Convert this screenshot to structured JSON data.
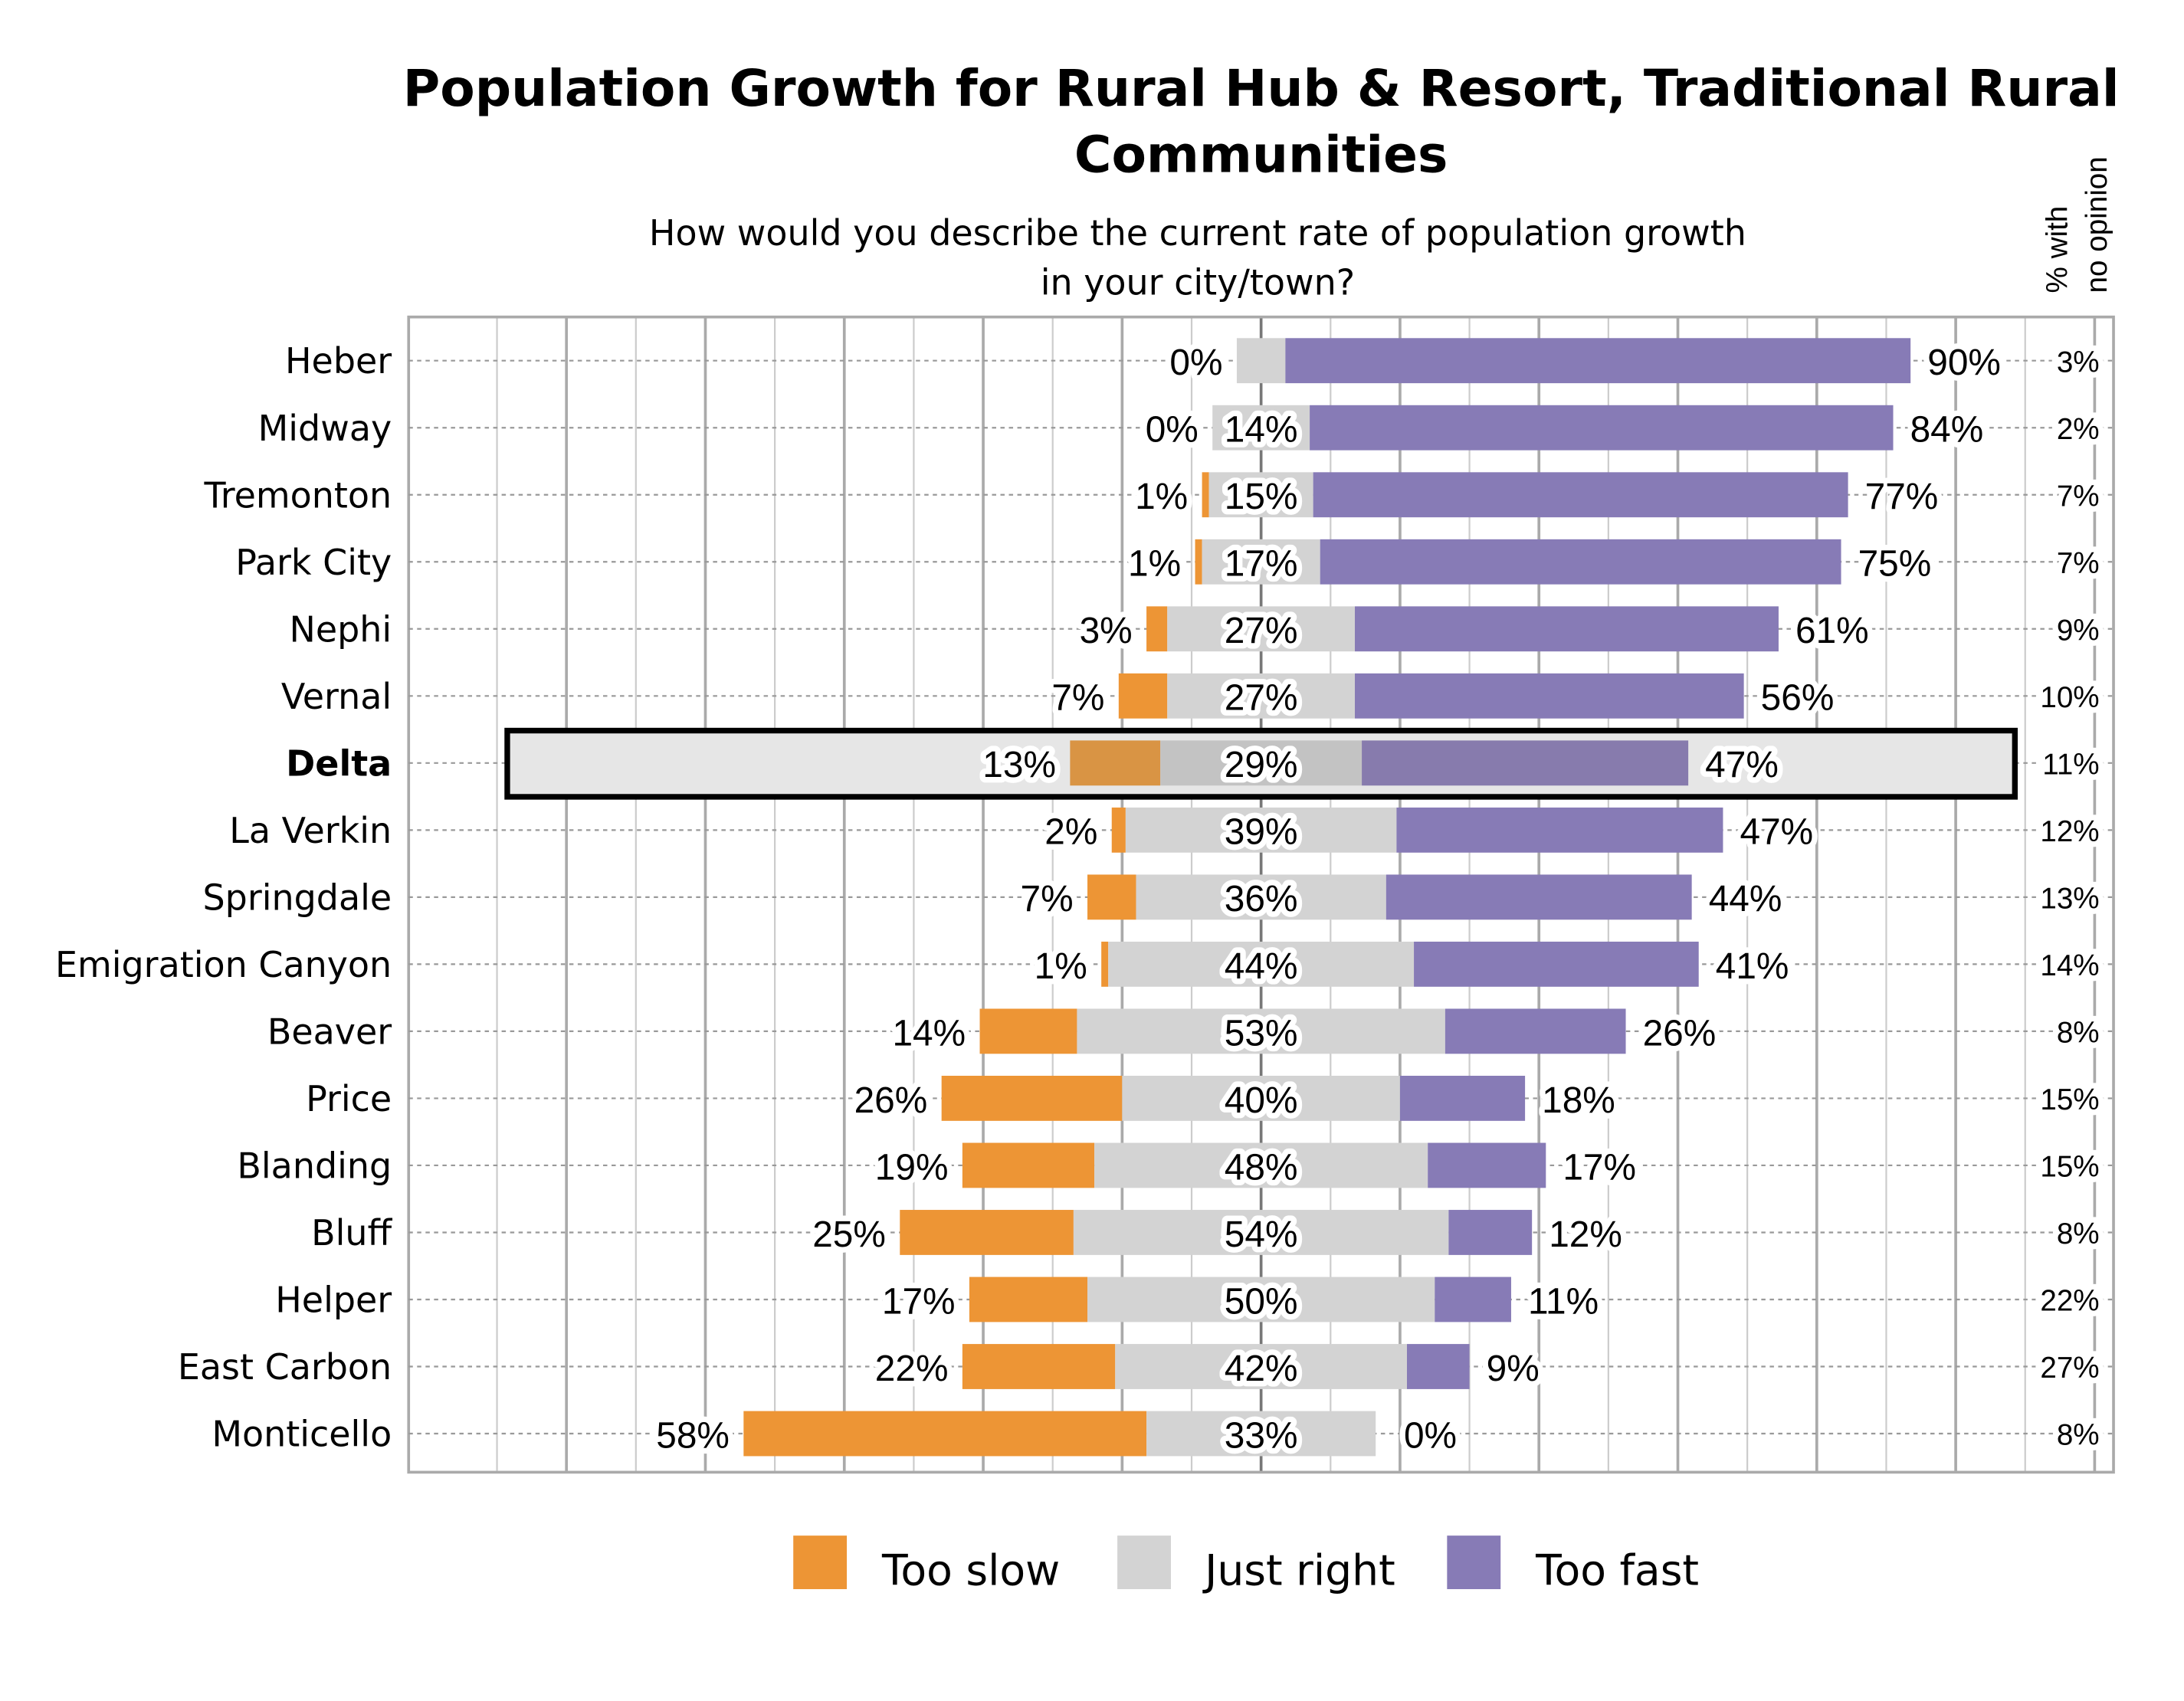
{
  "chart_data": {
    "type": "bar",
    "orientation": "horizontal",
    "stacked": "diverging",
    "title": "Population Growth for Rural Hub & Resort, Traditional Rural Communities",
    "title_lines": [
      "Population Growth for Rural Hub & Resort, Traditional Rural",
      "Communities"
    ],
    "subtitle_lines": [
      "How would you describe the current rate of population growth",
      "in your city/town?"
    ],
    "side_column_header_lines": [
      "% with",
      "no opinion"
    ],
    "highlighted_category": "Delta",
    "categories": [
      "Heber",
      "Midway",
      "Tremonton",
      "Park City",
      "Nephi",
      "Vernal",
      "Delta",
      "La Verkin",
      "Springdale",
      "Emigration Canyon",
      "Beaver",
      "Price",
      "Blanding",
      "Bluff",
      "Helper",
      "East Carbon",
      "Monticello"
    ],
    "series": [
      {
        "name": "Too slow",
        "color": "#ED9535",
        "values": [
          0,
          0,
          1,
          1,
          3,
          7,
          13,
          2,
          7,
          1,
          14,
          26,
          19,
          25,
          17,
          22,
          58
        ]
      },
      {
        "name": "Just right",
        "color": "#D3D3D3",
        "values": [
          7,
          14,
          15,
          17,
          27,
          27,
          29,
          39,
          36,
          44,
          53,
          40,
          48,
          54,
          50,
          42,
          33
        ],
        "labels_shown": [
          false,
          true,
          true,
          true,
          true,
          true,
          true,
          true,
          true,
          true,
          true,
          true,
          true,
          true,
          true,
          true,
          true
        ]
      },
      {
        "name": "Too fast",
        "color": "#877BB6",
        "values": [
          90,
          84,
          77,
          75,
          61,
          56,
          47,
          47,
          44,
          41,
          26,
          18,
          17,
          12,
          11,
          9,
          0
        ]
      }
    ],
    "no_opinion": [
      3,
      2,
      7,
      7,
      9,
      10,
      11,
      12,
      13,
      14,
      8,
      15,
      15,
      8,
      22,
      27,
      8
    ],
    "legend_position": "bottom",
    "grid": "vertical"
  }
}
